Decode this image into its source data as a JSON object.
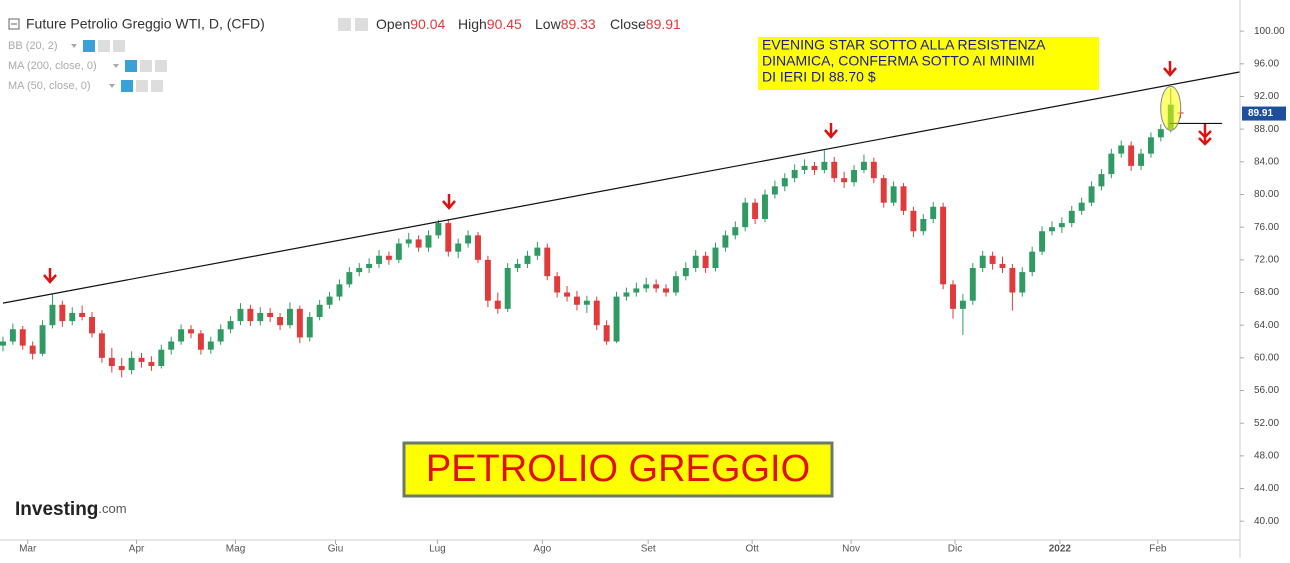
{
  "chart_data": {
    "type": "candlestick",
    "title": "Future Petrolio Greggio WTI, D, (CFD)",
    "ohlc_labels": [
      "Open",
      "High",
      "Low",
      "Close"
    ],
    "indicators": [
      "BB (20, 2)",
      "MA (200, close, 0)",
      "MA (50, close, 0)"
    ],
    "annotation": [
      "EVENING STAR SOTTO ALLA RESISTENZA",
      "DINAMICA, CONFERMA SOTTO AI MINIMI",
      "DI IERI DI 88.70 $"
    ],
    "banner": "PETROLIO GREGGIO",
    "logo": [
      "Investing",
      ".com"
    ],
    "up_color": "#2f9b63",
    "down_color": "#e03a3a",
    "ylim": [
      37.7,
      103.2
    ],
    "yticks": [
      {
        "value": 40,
        "label": "40.00"
      },
      {
        "value": 44,
        "label": "44.00"
      },
      {
        "value": 48,
        "label": "48.00"
      },
      {
        "value": 52,
        "label": "52.00"
      },
      {
        "value": 56,
        "label": "56.00"
      },
      {
        "value": 60,
        "label": "60.00"
      },
      {
        "value": 64,
        "label": "64.00"
      },
      {
        "value": 68,
        "label": "68.00"
      },
      {
        "value": 72,
        "label": "72.00"
      },
      {
        "value": 76,
        "label": "76.00"
      },
      {
        "value": 80,
        "label": "80.00"
      },
      {
        "value": 84,
        "label": "84.00"
      },
      {
        "value": 88,
        "label": "88.00"
      },
      {
        "value": 92,
        "label": "92.00"
      },
      {
        "value": 96,
        "label": "96.00"
      },
      {
        "value": 100,
        "label": "100.00"
      }
    ],
    "xlim": [
      -0.3,
      125
    ],
    "xticks": [
      {
        "value": 2.5,
        "label": "Mar"
      },
      {
        "value": 13.5,
        "label": "Apr"
      },
      {
        "value": 23.5,
        "label": "Mag"
      },
      {
        "value": 33.6,
        "label": "Giu"
      },
      {
        "value": 43.9,
        "label": "Lug"
      },
      {
        "value": 54.5,
        "label": "Ago"
      },
      {
        "value": 65.2,
        "label": "Set"
      },
      {
        "value": 75.7,
        "label": "Ott"
      },
      {
        "value": 85.7,
        "label": "Nov"
      },
      {
        "value": 96.2,
        "label": "Dic"
      },
      {
        "value": 106.8,
        "label": "2022",
        "bold": true
      },
      {
        "value": 116.7,
        "label": "Feb"
      }
    ],
    "trendline": {
      "x": [
        0,
        124.95
      ],
      "y": [
        66.7,
        95.0
      ]
    },
    "support": {
      "x": [
        117.9,
        123.2
      ],
      "y": 88.7
    },
    "ohlc": [
      [
        61.5,
        62.6,
        60.8,
        62
      ],
      [
        62,
        64.2,
        61.6,
        63.5
      ],
      [
        63.5,
        63.9,
        61,
        61.5
      ],
      [
        61.5,
        62,
        59.8,
        60.5
      ],
      [
        60.5,
        64.6,
        60.2,
        64
      ],
      [
        64,
        67.8,
        63.6,
        66.5
      ],
      [
        66.5,
        67,
        63.8,
        64.5
      ],
      [
        64.5,
        66.2,
        64,
        65.5
      ],
      [
        65.5,
        66.4,
        64.6,
        65
      ],
      [
        65,
        65.6,
        62.5,
        63
      ],
      [
        63,
        63.4,
        59.4,
        60
      ],
      [
        60,
        61.2,
        58.2,
        59
      ],
      [
        59,
        60,
        57.6,
        58.5
      ],
      [
        58.5,
        60.8,
        58,
        60
      ],
      [
        60,
        60.6,
        58.8,
        59.5
      ],
      [
        59.5,
        60.2,
        58.4,
        59
      ],
      [
        59,
        61.6,
        58.7,
        61
      ],
      [
        61,
        62.6,
        60.4,
        62
      ],
      [
        62,
        64.1,
        61.6,
        63.5
      ],
      [
        63.5,
        64,
        62.4,
        63
      ],
      [
        63,
        63.4,
        60.4,
        61
      ],
      [
        61,
        62.6,
        60.5,
        62
      ],
      [
        62,
        64.1,
        61.6,
        63.5
      ],
      [
        63.5,
        65.1,
        63,
        64.5
      ],
      [
        64.5,
        66.7,
        64,
        66
      ],
      [
        66,
        66.5,
        63.9,
        64.5
      ],
      [
        64.5,
        66.2,
        64,
        65.5
      ],
      [
        65.5,
        66.1,
        64.4,
        65
      ],
      [
        65,
        65.5,
        63.4,
        64
      ],
      [
        64,
        66.8,
        63.6,
        66
      ],
      [
        66,
        66.4,
        61.8,
        62.5
      ],
      [
        62.5,
        65.6,
        62,
        65
      ],
      [
        65,
        67.1,
        64.6,
        66.5
      ],
      [
        66.5,
        68.1,
        66,
        67.5
      ],
      [
        67.5,
        69.6,
        67,
        69
      ],
      [
        69,
        71.1,
        68.6,
        70.5
      ],
      [
        70.5,
        71.6,
        70,
        71
      ],
      [
        71,
        72.2,
        70.4,
        71.5
      ],
      [
        71.5,
        73.2,
        71,
        72.5
      ],
      [
        72.5,
        73,
        71.4,
        72
      ],
      [
        72,
        74.6,
        71.6,
        74
      ],
      [
        74,
        75.3,
        73.5,
        74.5
      ],
      [
        74.5,
        75,
        73,
        73.5
      ],
      [
        73.5,
        75.6,
        73,
        75
      ],
      [
        75,
        76.9,
        74.6,
        76.5
      ],
      [
        76.5,
        77,
        72.4,
        73
      ],
      [
        73,
        74.6,
        72.2,
        74
      ],
      [
        74,
        75.6,
        73.5,
        75
      ],
      [
        75,
        75.4,
        71.6,
        72
      ],
      [
        72,
        72.5,
        66.2,
        67
      ],
      [
        67,
        68,
        65.4,
        66
      ],
      [
        66,
        71.6,
        65.6,
        71
      ],
      [
        71,
        72.1,
        70.5,
        71.5
      ],
      [
        71.5,
        73.1,
        71,
        72.5
      ],
      [
        72.5,
        74.2,
        72,
        73.5
      ],
      [
        73.5,
        74,
        69.5,
        70
      ],
      [
        70,
        70.5,
        67.4,
        68
      ],
      [
        68,
        68.8,
        66.9,
        67.5
      ],
      [
        67.5,
        68.2,
        65.8,
        66.5
      ],
      [
        66.5,
        67.6,
        65.5,
        67
      ],
      [
        67,
        67.5,
        63.4,
        64
      ],
      [
        64,
        64.6,
        61.6,
        62
      ],
      [
        62,
        68.1,
        61.8,
        67.5
      ],
      [
        67.5,
        68.6,
        67,
        68
      ],
      [
        68,
        69.2,
        67.5,
        68.5
      ],
      [
        68.5,
        69.8,
        68,
        69
      ],
      [
        69,
        69.6,
        68,
        68.5
      ],
      [
        68.5,
        69,
        67.5,
        68
      ],
      [
        68,
        70.6,
        67.6,
        70
      ],
      [
        70,
        71.7,
        69.5,
        71
      ],
      [
        71,
        73.2,
        70.5,
        72.5
      ],
      [
        72.5,
        73,
        70.4,
        71
      ],
      [
        71,
        74.1,
        70.6,
        73.5
      ],
      [
        73.5,
        75.6,
        73,
        75
      ],
      [
        75,
        76.7,
        74.5,
        76
      ],
      [
        76,
        79.6,
        75.5,
        79
      ],
      [
        79,
        79.5,
        76.4,
        77
      ],
      [
        77,
        80.6,
        76.6,
        80
      ],
      [
        80,
        81.7,
        79.5,
        81
      ],
      [
        81,
        82.6,
        80.4,
        82
      ],
      [
        82,
        83.7,
        81.5,
        83
      ],
      [
        83,
        84.3,
        82.5,
        83.5
      ],
      [
        83.5,
        84,
        82.4,
        83
      ],
      [
        83,
        85.4,
        82.6,
        84
      ],
      [
        84,
        84.6,
        81.5,
        82
      ],
      [
        82,
        82.8,
        80.8,
        81.5
      ],
      [
        81.5,
        83.6,
        81,
        83
      ],
      [
        83,
        84.9,
        82.6,
        84
      ],
      [
        84,
        84.5,
        81.4,
        82
      ],
      [
        82,
        82.4,
        78.4,
        79
      ],
      [
        79,
        81.6,
        78.6,
        81
      ],
      [
        81,
        81.4,
        77.5,
        78
      ],
      [
        78,
        78.5,
        74.8,
        75.5
      ],
      [
        75.5,
        77.6,
        75,
        77
      ],
      [
        77,
        79.1,
        76.5,
        78.5
      ],
      [
        78.5,
        79,
        68.4,
        69
      ],
      [
        69,
        69.5,
        64.8,
        66
      ],
      [
        66,
        67.8,
        62.8,
        67
      ],
      [
        67,
        71.6,
        66.5,
        71
      ],
      [
        71,
        73.1,
        70.5,
        72.5
      ],
      [
        72.5,
        73,
        70.8,
        71.5
      ],
      [
        71.5,
        72.4,
        70.4,
        71
      ],
      [
        71,
        71.5,
        65.8,
        68
      ],
      [
        68,
        71.1,
        67.5,
        70.5
      ],
      [
        70.5,
        73.6,
        70,
        73
      ],
      [
        73,
        76.1,
        72.6,
        75.5
      ],
      [
        75.5,
        76.7,
        75,
        76
      ],
      [
        76,
        77.2,
        75.3,
        76.5
      ],
      [
        76.5,
        78.6,
        76,
        78
      ],
      [
        78,
        79.6,
        77.5,
        79
      ],
      [
        79,
        81.6,
        78.6,
        81
      ],
      [
        81,
        83.1,
        80.5,
        82.5
      ],
      [
        82.5,
        85.6,
        82,
        85
      ],
      [
        85,
        86.6,
        84.5,
        86
      ],
      [
        86,
        86.5,
        82.9,
        83.5
      ],
      [
        83.5,
        85.6,
        83,
        85
      ],
      [
        85,
        87.6,
        84.5,
        87
      ],
      [
        87,
        88.6,
        86.5,
        88
      ],
      [
        88,
        93,
        87.6,
        91
      ],
      [
        90.04,
        90.45,
        89.33,
        89.91
      ]
    ]
  }
}
